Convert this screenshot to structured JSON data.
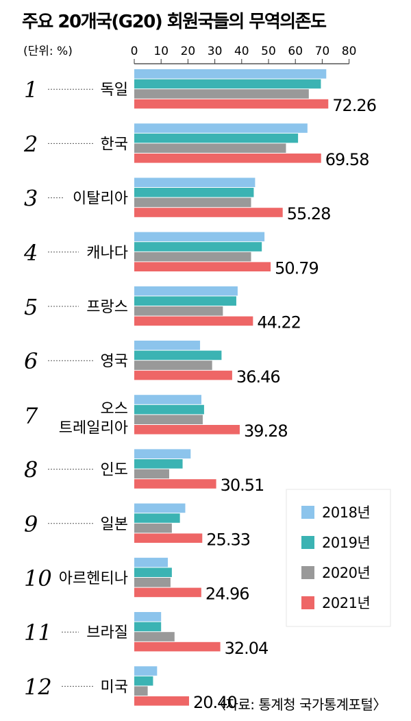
{
  "title": "주요 20개국(G20) 회원국들의 무역의존도",
  "unit_label": "(단위: %)",
  "source": "〈자료: 통계청 국가통계포털〉",
  "chart_data": {
    "type": "bar",
    "orientation": "horizontal",
    "title": "주요 20개국(G20) 회원국들의 무역의존도",
    "unit": "%",
    "xlim": [
      0,
      80
    ],
    "x_ticks": [
      0,
      10,
      20,
      30,
      40,
      50,
      60,
      70,
      80
    ],
    "legend_position": "bottom-right",
    "ranks": [
      "1",
      "2",
      "3",
      "4",
      "5",
      "6",
      "7",
      "8",
      "9",
      "10",
      "11",
      "12"
    ],
    "categories": [
      "독일",
      "한국",
      "이탈리아",
      "캐나다",
      "프랑스",
      "영국",
      "오스\n트레일리아",
      "인도",
      "일본",
      "아르헨티나",
      "브라질",
      "미국"
    ],
    "series": [
      {
        "name": "2018년",
        "color": "#8cc4ec",
        "values": [
          71.5,
          64.5,
          45.0,
          48.5,
          38.5,
          24.5,
          25.0,
          21.0,
          19.0,
          12.5,
          10.0,
          8.5
        ]
      },
      {
        "name": "2019년",
        "color": "#3bb3b3",
        "values": [
          69.5,
          61.0,
          44.5,
          47.5,
          38.0,
          32.5,
          26.0,
          18.0,
          17.0,
          14.0,
          10.0,
          7.0
        ]
      },
      {
        "name": "2020년",
        "color": "#999999",
        "values": [
          65.0,
          56.5,
          43.5,
          43.5,
          33.0,
          29.0,
          25.5,
          13.0,
          14.0,
          13.5,
          15.0,
          5.0
        ]
      },
      {
        "name": "2021년",
        "color": "#ee6666",
        "values": [
          72.26,
          69.58,
          55.28,
          50.79,
          44.22,
          36.46,
          39.28,
          30.51,
          25.33,
          24.96,
          32.04,
          20.4
        ]
      }
    ],
    "value_labels": [
      "72.26",
      "69.58",
      "55.28",
      "50.79",
      "44.22",
      "36.46",
      "39.28",
      "30.51",
      "25.33",
      "24.96",
      "32.04",
      "20.40"
    ]
  }
}
